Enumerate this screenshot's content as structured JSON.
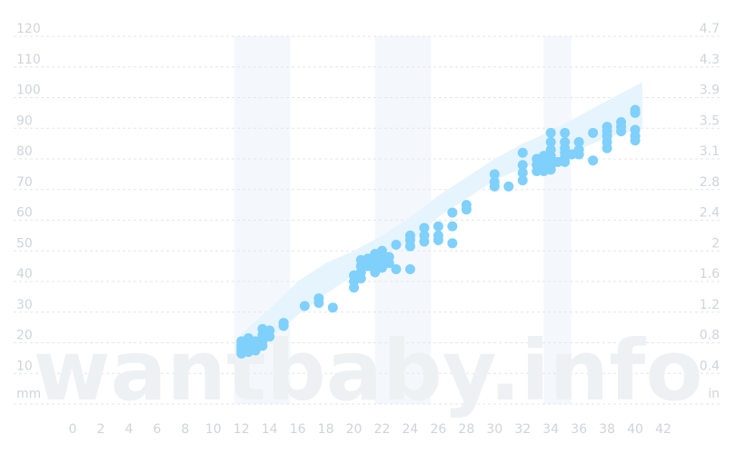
{
  "chart_data": {
    "type": "scatter",
    "title": "",
    "xlabel": "",
    "ylabel_left": "mm",
    "ylabel_right": "in",
    "watermark": "wantbaby.info",
    "xlim": [
      0,
      42
    ],
    "ylim": [
      0,
      120
    ],
    "x_ticks": [
      "0",
      "2",
      "4",
      "6",
      "8",
      "10",
      "12",
      "14",
      "16",
      "18",
      "20",
      "22",
      "24",
      "26",
      "28",
      "30",
      "32",
      "34",
      "36",
      "38",
      "40",
      "42"
    ],
    "y_ticks_left": [
      "10",
      "20",
      "30",
      "40",
      "50",
      "60",
      "70",
      "80",
      "90",
      "100",
      "110",
      "120"
    ],
    "y_ticks_right": [
      "0.4",
      "0.8",
      "1.2",
      "1.6",
      "2",
      "2.4",
      "2.8",
      "3.1",
      "3.5",
      "3.9",
      "4.3",
      "4.7"
    ],
    "grid": true,
    "shaded_bands": [
      [
        12,
        16
      ],
      [
        22,
        26
      ],
      [
        34,
        36
      ]
    ],
    "range_band": [
      {
        "x": 12,
        "low": 15,
        "high": 23
      },
      {
        "x": 14,
        "low": 21,
        "high": 31
      },
      {
        "x": 16,
        "low": 29,
        "high": 40
      },
      {
        "x": 18,
        "low": 36,
        "high": 46
      },
      {
        "x": 20,
        "low": 42,
        "high": 50
      },
      {
        "x": 22,
        "low": 49,
        "high": 55
      },
      {
        "x": 24,
        "low": 53,
        "high": 61
      },
      {
        "x": 26,
        "low": 61,
        "high": 68
      },
      {
        "x": 28,
        "low": 67,
        "high": 74
      },
      {
        "x": 30,
        "low": 73,
        "high": 80
      },
      {
        "x": 32,
        "low": 77,
        "high": 85
      },
      {
        "x": 34,
        "low": 80,
        "high": 89
      },
      {
        "x": 36,
        "low": 83,
        "high": 94
      },
      {
        "x": 38,
        "low": 87,
        "high": 99
      },
      {
        "x": 40.5,
        "low": 90,
        "high": 105
      }
    ],
    "points": [
      [
        12,
        16.5
      ],
      [
        12,
        17.5
      ],
      [
        12,
        18.5
      ],
      [
        12,
        19.5
      ],
      [
        12,
        20.5
      ],
      [
        12.5,
        17
      ],
      [
        12.5,
        18.5
      ],
      [
        12.5,
        20
      ],
      [
        12.5,
        21.5
      ],
      [
        13,
        17.5
      ],
      [
        13,
        19
      ],
      [
        13,
        20.5
      ],
      [
        13.5,
        19
      ],
      [
        13.5,
        20.5
      ],
      [
        13.5,
        22.5
      ],
      [
        13.5,
        24.5
      ],
      [
        14,
        22
      ],
      [
        14,
        24
      ],
      [
        15,
        25.5
      ],
      [
        15,
        26.5
      ],
      [
        16.5,
        32
      ],
      [
        17.5,
        33
      ],
      [
        17.5,
        34.5
      ],
      [
        18.5,
        31.5
      ],
      [
        20,
        38
      ],
      [
        20,
        40
      ],
      [
        20,
        42
      ],
      [
        20.5,
        41
      ],
      [
        20.5,
        43
      ],
      [
        20.5,
        45
      ],
      [
        20.5,
        47
      ],
      [
        21,
        45
      ],
      [
        21,
        47.5
      ],
      [
        21.5,
        43
      ],
      [
        21.5,
        45
      ],
      [
        21.5,
        47.5
      ],
      [
        21.5,
        49
      ],
      [
        22,
        44.5
      ],
      [
        22,
        46
      ],
      [
        22,
        48
      ],
      [
        22,
        50
      ],
      [
        22.5,
        46
      ],
      [
        22.5,
        48
      ],
      [
        23,
        44
      ],
      [
        23,
        52
      ],
      [
        24,
        44
      ],
      [
        24,
        51.5
      ],
      [
        24,
        53.5
      ],
      [
        24,
        55
      ],
      [
        25,
        53
      ],
      [
        25,
        55
      ],
      [
        25,
        57.5
      ],
      [
        26,
        53.5
      ],
      [
        26,
        55
      ],
      [
        26,
        58
      ],
      [
        27,
        52.5
      ],
      [
        27,
        58
      ],
      [
        27,
        62.5
      ],
      [
        28,
        63.5
      ],
      [
        28,
        65
      ],
      [
        30,
        71
      ],
      [
        30,
        72.5
      ],
      [
        30,
        75
      ],
      [
        31,
        71
      ],
      [
        32,
        73
      ],
      [
        32,
        75.5
      ],
      [
        32,
        78
      ],
      [
        32,
        82
      ],
      [
        33,
        76
      ],
      [
        33,
        78
      ],
      [
        33,
        80
      ],
      [
        33.5,
        76
      ],
      [
        33.5,
        78.5
      ],
      [
        33.5,
        81
      ],
      [
        34,
        76.5
      ],
      [
        34,
        78
      ],
      [
        34,
        79.5
      ],
      [
        34,
        81
      ],
      [
        34,
        83
      ],
      [
        34,
        85.5
      ],
      [
        34,
        88.5
      ],
      [
        34.5,
        79
      ],
      [
        35,
        79
      ],
      [
        35,
        80.5
      ],
      [
        35,
        82
      ],
      [
        35,
        83.5
      ],
      [
        35,
        85.5
      ],
      [
        35,
        88.5
      ],
      [
        35.5,
        81.5
      ],
      [
        36,
        81.5
      ],
      [
        36,
        83
      ],
      [
        36,
        85.5
      ],
      [
        37,
        79.5
      ],
      [
        37,
        88.5
      ],
      [
        38,
        83.5
      ],
      [
        38,
        85.5
      ],
      [
        38,
        87.5
      ],
      [
        38,
        89
      ],
      [
        38,
        90.5
      ],
      [
        39,
        89
      ],
      [
        39,
        90.5
      ],
      [
        39,
        92
      ],
      [
        40,
        86
      ],
      [
        40,
        87.5
      ],
      [
        40,
        89.5
      ],
      [
        40,
        95
      ],
      [
        40,
        96
      ]
    ]
  }
}
